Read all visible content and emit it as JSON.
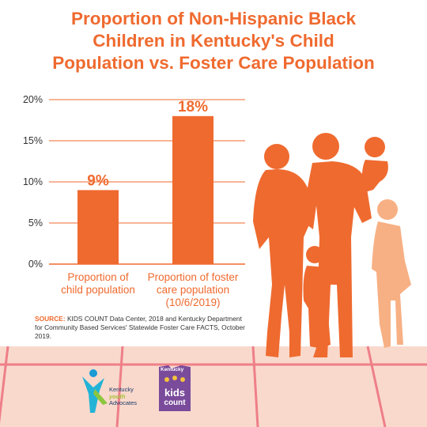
{
  "title_lines": [
    "Proportion of Non-Hispanic Black",
    "Children in Kentucky's Child",
    "Population vs. Foster Care Population"
  ],
  "colors": {
    "accent": "#ef6a2f",
    "floor": "#f9d9cc",
    "light_figure": "#f7b084"
  },
  "chart_data": {
    "type": "bar",
    "title": "Proportion of Non-Hispanic Black Children in Kentucky's Child Population vs. Foster Care Population",
    "categories": [
      [
        "Proportion of",
        "child population"
      ],
      [
        "Proportion of foster",
        "care population",
        "(10/6/2019)"
      ]
    ],
    "values": [
      9,
      18
    ],
    "data_labels": [
      "9%",
      "18%"
    ],
    "ylim": [
      0,
      20
    ],
    "yticks": [
      0,
      5,
      10,
      15,
      20
    ],
    "ytick_labels": [
      "0%",
      "5%",
      "10%",
      "15%",
      "20%"
    ],
    "xlabel": "",
    "ylabel": "",
    "grid": false
  },
  "source": {
    "label": "SOURCE:",
    "text": " KIDS COUNT Data Center, 2018 and Kentucky Department for Community Based Services' Statewide Foster Care FACTS, October 2019."
  },
  "logos": {
    "kya_line1": "Kentucky",
    "kya_line2": "youth",
    "kya_line3": "Advocates",
    "kc_state": "Kentucky",
    "kc_kids": "kids",
    "kc_count": "count"
  }
}
